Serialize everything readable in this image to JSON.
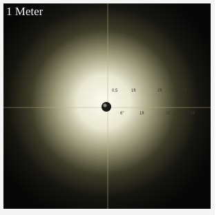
{
  "photo": {
    "caption": "1 Meter",
    "labels": {
      "upper": [
        "0.5",
        "1ft",
        "2ft",
        "3ft"
      ],
      "lower": [
        "6\"",
        "1ft",
        "2ft",
        "3ft"
      ]
    }
  }
}
